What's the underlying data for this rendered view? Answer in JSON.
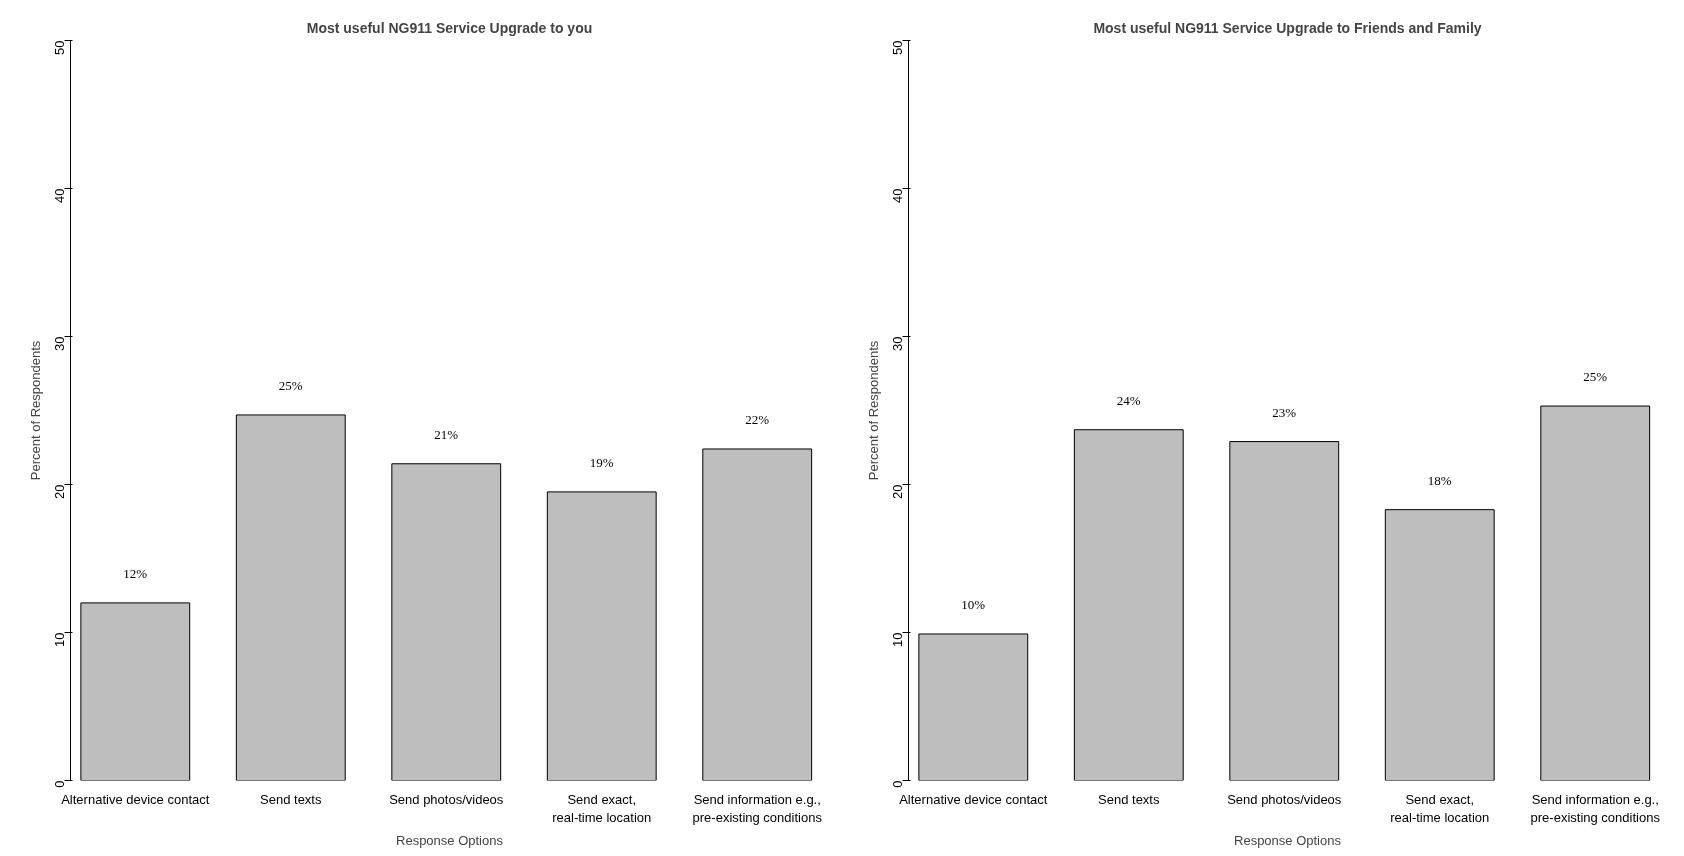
{
  "chart_data": [
    {
      "type": "bar",
      "title": "Most useful NG911 Service Upgrade to you",
      "xlabel": "Response Options",
      "ylabel": "Percent of Respondents",
      "categories": [
        "Alternative device contact",
        "Send texts",
        "Send photos/videos",
        "Send exact,\nreal-time location",
        "Send information e.g.,\npre-existing conditions"
      ],
      "values": [
        12.0,
        24.7,
        21.4,
        19.5,
        22.4
      ],
      "value_labels": [
        "12%",
        "25%",
        "21%",
        "19%",
        "22%"
      ],
      "color": "#bebebe",
      "ylim": [
        0,
        50
      ],
      "yticks": [
        0,
        10,
        20,
        30,
        40,
        50
      ],
      "grid": false
    },
    {
      "type": "bar",
      "title": "Most useful NG911 Service Upgrade to Friends and Family",
      "xlabel": "Response Options",
      "ylabel": "Percent of Respondents",
      "categories": [
        "Alternative device contact",
        "Send texts",
        "Send photos/videos",
        "Send exact,\nreal-time location",
        "Send information e.g.,\npre-existing conditions"
      ],
      "values": [
        9.9,
        23.7,
        22.9,
        18.3,
        25.3
      ],
      "value_labels": [
        "10%",
        "24%",
        "23%",
        "18%",
        "25%"
      ],
      "color": "#bebebe",
      "ylim": [
        0,
        50
      ],
      "yticks": [
        0,
        10,
        20,
        30,
        40,
        50
      ],
      "grid": false
    }
  ]
}
